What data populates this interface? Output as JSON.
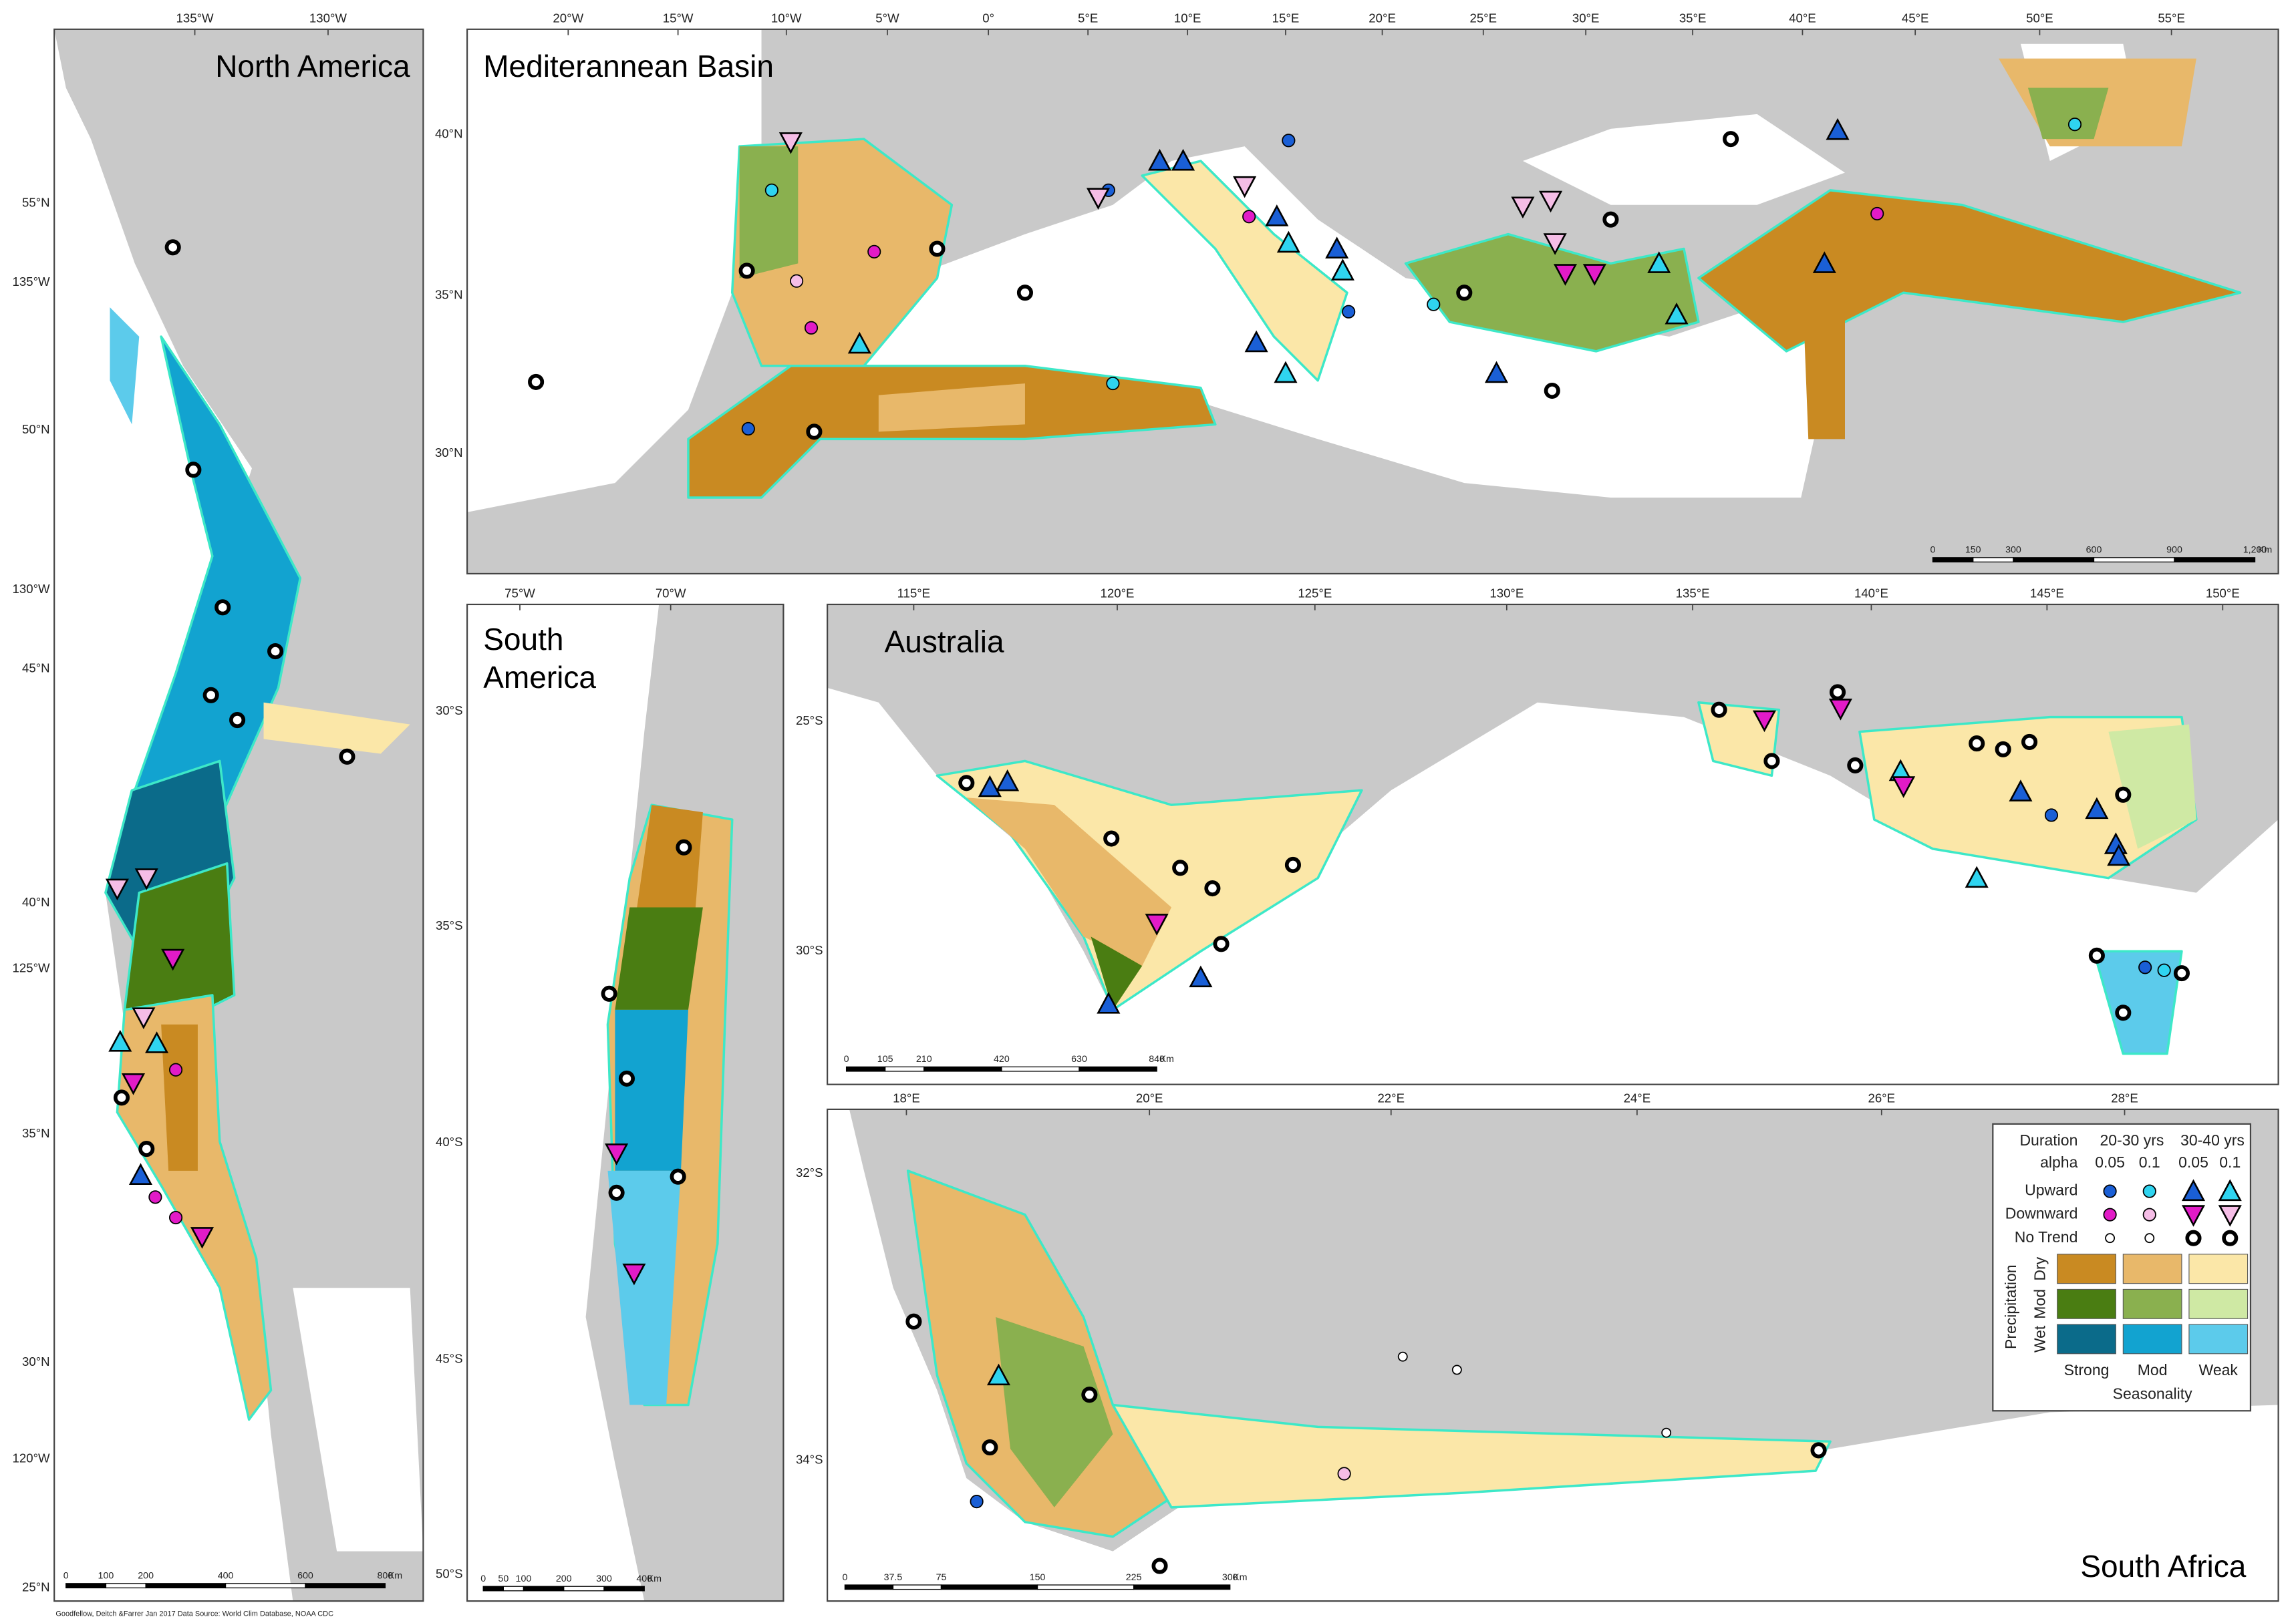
{
  "panels": [
    {
      "title": "North America",
      "top_labels": [
        "135°W",
        "130°W"
      ],
      "left_labels": [
        "55°N",
        "135°W",
        "50°N",
        "130°W",
        "45°N",
        "40°N",
        "125°W",
        "35°N",
        "30°N",
        "120°W",
        "25°N"
      ],
      "scale_labels": [
        "0",
        "100",
        "200",
        "400",
        "600",
        "800",
        "Km"
      ]
    },
    {
      "title": "Mediterannean Basin",
      "top_labels": [
        "20°W",
        "15°W",
        "10°W",
        "5°W",
        "0°",
        "5°E",
        "10°E",
        "15°E",
        "20°E",
        "25°E",
        "30°E",
        "35°E",
        "40°E",
        "45°E",
        "50°E",
        "55°E"
      ],
      "left_labels": [
        "40°N",
        "35°N",
        "30°N"
      ],
      "scale_labels": [
        "0",
        "150",
        "300",
        "600",
        "900",
        "1,200",
        "Km"
      ]
    },
    {
      "title": "South America",
      "top_labels": [
        "75°W",
        "70°W"
      ],
      "left_labels": [
        "30°S",
        "35°S",
        "40°S",
        "45°S",
        "50°S"
      ],
      "scale_labels": [
        "0",
        "50",
        "100",
        "200",
        "300",
        "400",
        "Km"
      ]
    },
    {
      "title": "Australia",
      "top_labels": [
        "115°E",
        "120°E",
        "125°E",
        "130°E",
        "135°E",
        "140°E",
        "145°E",
        "150°E"
      ],
      "left_labels": [
        "25°S",
        "30°S"
      ],
      "scale_labels": [
        "0",
        "105",
        "210",
        "420",
        "630",
        "840",
        "Km"
      ]
    },
    {
      "title": "South Africa",
      "top_labels": [
        "18°E",
        "20°E",
        "22°E",
        "24°E",
        "26°E",
        "28°E"
      ],
      "left_labels": [
        "32°S",
        "34°S"
      ],
      "scale_labels": [
        "0",
        "37.5",
        "75",
        "150",
        "225",
        "300",
        "Km"
      ]
    }
  ],
  "legend": {
    "duration": "Duration",
    "alpha": "alpha",
    "periods": [
      "20-30 yrs",
      "30-40 yrs"
    ],
    "alphas": [
      "0.05",
      "0.1",
      "0.05",
      "0.1"
    ],
    "trends": [
      "Upward",
      "Downward",
      "No Trend"
    ],
    "precipitation": "Precipitation",
    "precip_levels": [
      "Dry",
      "Mod",
      "Wet"
    ],
    "seasonality_levels": [
      "Strong",
      "Mod",
      "Weak"
    ],
    "seasonality": "Seasonality"
  },
  "credit": "Goodfellow, Deitch &Farrer  Jan 2017  Data Source: World Clim Database, NOAA CDC"
}
